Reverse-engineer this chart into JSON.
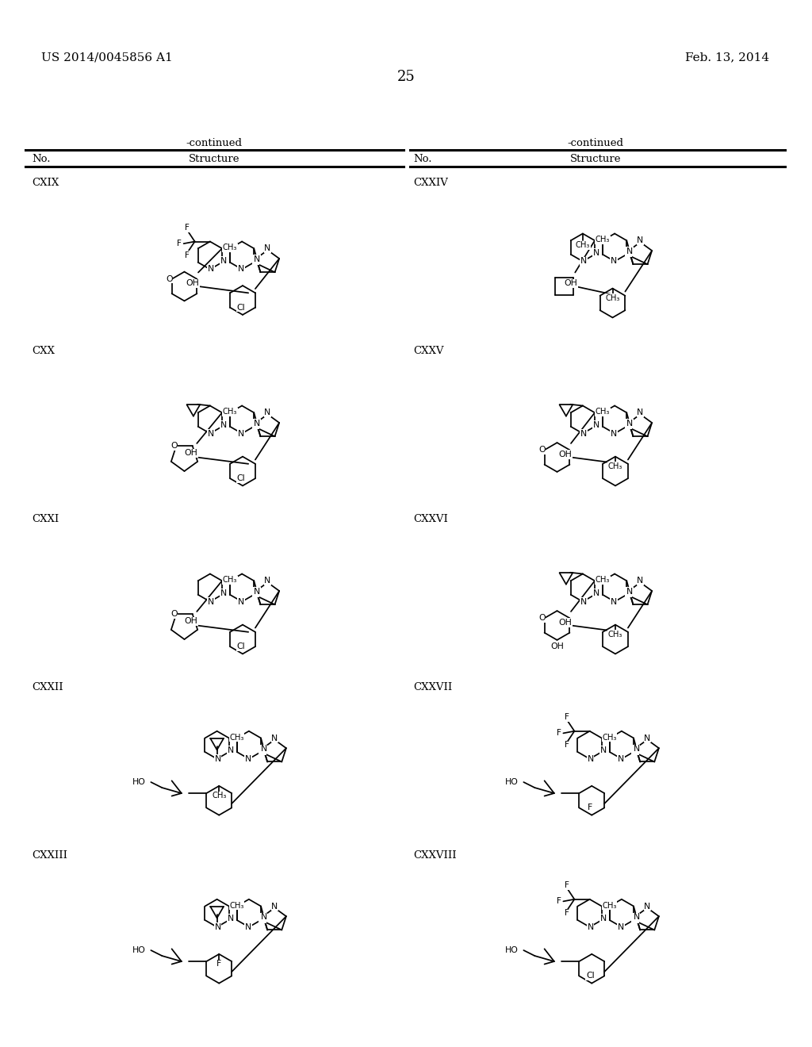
{
  "patent_left": "US 2014/0045856 A1",
  "patent_right": "Feb. 13, 2014",
  "page_num": "25",
  "continued": "-continued",
  "no_label": "No.",
  "struct_label": "Structure",
  "left_ids": [
    "CXIX",
    "CXX",
    "CXXI",
    "CXXII",
    "CXXIII"
  ],
  "right_ids": [
    "CXXIV",
    "CXXV",
    "CXXVI",
    "CXXVII",
    "CXXVIII"
  ],
  "bg": "#ffffff",
  "fg": "#000000"
}
